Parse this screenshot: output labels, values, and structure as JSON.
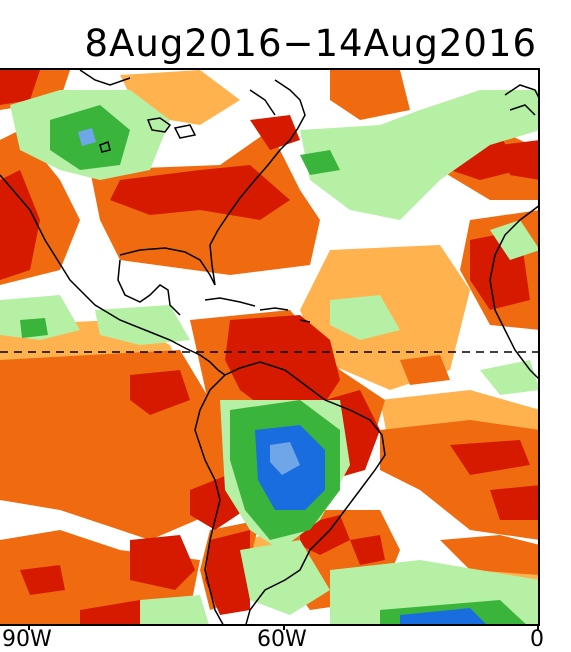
{
  "map": {
    "title": "8Aug2016−14Aug2016",
    "type": "anomaly field map",
    "region": "Americas and Atlantic",
    "equator_line": "dashed",
    "longitude_labels": [
      "90W",
      "60W",
      "0"
    ]
  },
  "colors": {
    "strong_dry": "#d51a00",
    "dry": "#f06a0f",
    "weak_dry": "#ffb24d",
    "neutral": "#ffffff",
    "weak_wet": "#b5f0a5",
    "wet": "#3ab43a",
    "very_wet": "#1a6dde",
    "extreme_wet": "#6fa6e8",
    "coastline": "#000000"
  }
}
